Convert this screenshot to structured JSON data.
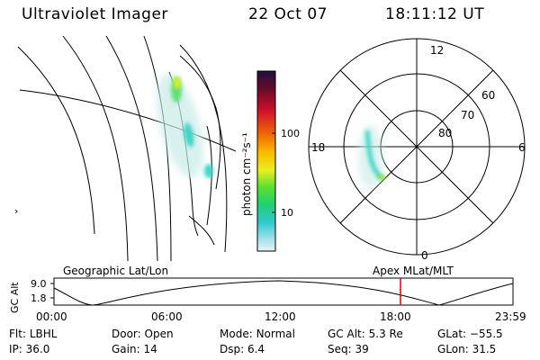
{
  "header": {
    "instrument": "Ultraviolet Imager",
    "date": "22 Oct 07",
    "time": "18:11:12 UT"
  },
  "colorbar": {
    "label": "photon cm⁻²s⁻¹",
    "ticks": [
      "100",
      "10"
    ],
    "colors": [
      "#201040",
      "#6a0a2a",
      "#d0102a",
      "#f07000",
      "#f8c000",
      "#e8f020",
      "#60e030",
      "#20d070",
      "#30c8d0",
      "#a0e0e8",
      "#e8f4f4"
    ]
  },
  "polar": {
    "mlt_labels": {
      "top": "12",
      "left": "18",
      "right": "6",
      "bottom": "0"
    },
    "lat_labels": [
      "60",
      "70",
      "80"
    ]
  },
  "timeline": {
    "left_label": "Geographic Lat/Lon",
    "right_label": "Apex MLat/MLT",
    "axis_label": "GC Alt",
    "y_ticks": [
      "9.0",
      "1.8"
    ],
    "x_ticks": [
      "00:00",
      "06:00",
      "12:00",
      "18:00",
      "23:59"
    ],
    "marker_color": "#e00000"
  },
  "geo_map": {
    "edge_mark": "›"
  },
  "status": {
    "row1": [
      {
        "key": "Flt:",
        "value": "LBHL"
      },
      {
        "key": "Door:",
        "value": "Open"
      },
      {
        "key": "Mode:",
        "value": "Normal"
      },
      {
        "key": "GC Alt:",
        "value": "5.3 Re"
      },
      {
        "key": "GLat:",
        "value": "−55.5"
      }
    ],
    "row2": [
      {
        "key": "IP:",
        "value": "36.0"
      },
      {
        "key": "Gain:",
        "value": "14"
      },
      {
        "key": "Dsp:",
        "value": "6.4"
      },
      {
        "key": "Seq:",
        "value": "39"
      },
      {
        "key": "GLon:",
        "value": "31.5"
      }
    ]
  }
}
